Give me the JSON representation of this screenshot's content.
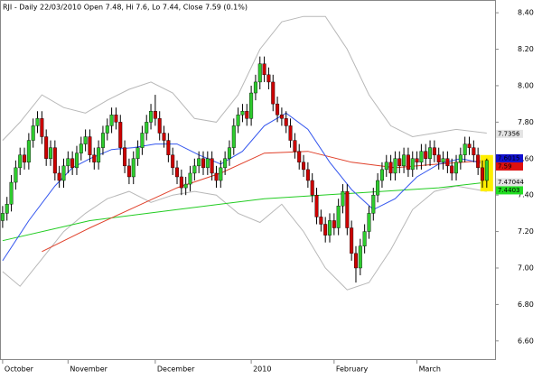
{
  "chart_data": {
    "type": "candlestick",
    "title": "RJI - Daily 22/03/2010 Open 7.48, Hi 7.6, Lo 7.44, Close 7.59 (0.1%)",
    "up_color": "#2ecc2e",
    "down_color": "#cc0000",
    "xlim": [
      -0.6,
      112.9
    ],
    "xticks": [
      {
        "value": 0,
        "label": "October"
      },
      {
        "value": 15,
        "label": "November"
      },
      {
        "value": 35,
        "label": "December"
      },
      {
        "value": 57,
        "label": "2010"
      },
      {
        "value": 76,
        "label": "February"
      },
      {
        "value": 95,
        "label": "March"
      }
    ],
    "ylim": [
      6.5,
      8.47
    ],
    "yticks": [
      {
        "value": 6.6,
        "label": "6.60"
      },
      {
        "value": 6.8,
        "label": "6.80"
      },
      {
        "value": 7.0,
        "label": "7.00"
      },
      {
        "value": 7.2,
        "label": "7.20"
      },
      {
        "value": 7.4,
        "label": "7.40"
      },
      {
        "value": 7.6,
        "label": "7.60"
      },
      {
        "value": 7.8,
        "label": "7.80"
      },
      {
        "value": 8.0,
        "label": "8.00"
      },
      {
        "value": 8.2,
        "label": "8.20"
      },
      {
        "value": 8.4,
        "label": "8.40"
      }
    ],
    "open": [
      7.26,
      7.3,
      7.35,
      7.47,
      7.55,
      7.62,
      7.58,
      7.7,
      7.78,
      7.82,
      7.72,
      7.6,
      7.66,
      7.52,
      7.48,
      7.56,
      7.6,
      7.55,
      7.63,
      7.68,
      7.72,
      7.62,
      7.58,
      7.66,
      7.74,
      7.78,
      7.84,
      7.8,
      7.66,
      7.56,
      7.5,
      7.6,
      7.66,
      7.74,
      7.8,
      7.86,
      7.82,
      7.74,
      7.7,
      7.62,
      7.55,
      7.5,
      7.44,
      7.46,
      7.52,
      7.56,
      7.6,
      7.55,
      7.6,
      7.52,
      7.48,
      7.55,
      7.6,
      7.66,
      7.78,
      7.84,
      7.86,
      7.82,
      7.96,
      8.02,
      8.12,
      8.06,
      8.02,
      7.9,
      7.84,
      7.82,
      7.78,
      7.7,
      7.64,
      7.58,
      7.54,
      7.48,
      7.4,
      7.28,
      7.24,
      7.18,
      7.26,
      7.22,
      7.34,
      7.42,
      7.22,
      7.08,
      7.0,
      7.12,
      7.2,
      7.3,
      7.4,
      7.48,
      7.54,
      7.58,
      7.52,
      7.6,
      7.56,
      7.62,
      7.54,
      7.6,
      7.58,
      7.64,
      7.6,
      7.66,
      7.62,
      7.58,
      7.6,
      7.56,
      7.52,
      7.58,
      7.62,
      7.68,
      7.66,
      7.62,
      7.55,
      7.48
    ],
    "high": [
      7.34,
      7.39,
      7.51,
      7.59,
      7.66,
      7.66,
      7.74,
      7.82,
      7.86,
      7.86,
      7.76,
      7.7,
      7.7,
      7.56,
      7.6,
      7.64,
      7.64,
      7.67,
      7.72,
      7.76,
      7.76,
      7.66,
      7.7,
      7.78,
      7.82,
      7.88,
      7.88,
      7.84,
      7.7,
      7.6,
      7.64,
      7.7,
      7.78,
      7.84,
      7.9,
      7.95,
      7.86,
      7.78,
      7.74,
      7.66,
      7.59,
      7.54,
      7.5,
      7.56,
      7.6,
      7.64,
      7.64,
      7.64,
      7.64,
      7.56,
      7.59,
      7.64,
      7.7,
      7.82,
      7.88,
      7.9,
      7.9,
      8.0,
      8.06,
      8.16,
      8.16,
      8.1,
      8.06,
      7.94,
      7.88,
      7.86,
      7.82,
      7.74,
      7.68,
      7.62,
      7.58,
      7.52,
      7.44,
      7.32,
      7.28,
      7.3,
      7.3,
      7.38,
      7.46,
      7.46,
      7.26,
      7.12,
      7.16,
      7.24,
      7.34,
      7.44,
      7.52,
      7.58,
      7.62,
      7.62,
      7.64,
      7.64,
      7.66,
      7.66,
      7.64,
      7.64,
      7.68,
      7.68,
      7.7,
      7.7,
      7.66,
      7.64,
      7.64,
      7.6,
      7.62,
      7.66,
      7.72,
      7.72,
      7.7,
      7.66,
      7.59,
      7.6
    ],
    "low": [
      7.22,
      7.26,
      7.31,
      7.43,
      7.51,
      7.54,
      7.54,
      7.66,
      7.74,
      7.68,
      7.56,
      7.56,
      7.48,
      7.44,
      7.44,
      7.52,
      7.51,
      7.51,
      7.59,
      7.64,
      7.58,
      7.54,
      7.54,
      7.62,
      7.7,
      7.74,
      7.76,
      7.62,
      7.52,
      7.46,
      7.46,
      7.56,
      7.62,
      7.7,
      7.76,
      7.78,
      7.7,
      7.66,
      7.58,
      7.51,
      7.46,
      7.4,
      7.4,
      7.42,
      7.48,
      7.52,
      7.51,
      7.51,
      7.48,
      7.44,
      7.44,
      7.51,
      7.56,
      7.62,
      7.74,
      7.8,
      7.78,
      7.78,
      7.92,
      7.98,
      8.02,
      7.98,
      7.86,
      7.8,
      7.78,
      7.74,
      7.66,
      7.6,
      7.54,
      7.5,
      7.44,
      7.36,
      7.24,
      7.2,
      7.14,
      7.14,
      7.18,
      7.18,
      7.3,
      7.18,
      7.04,
      6.92,
      6.96,
      7.08,
      7.16,
      7.26,
      7.36,
      7.44,
      7.5,
      7.48,
      7.48,
      7.52,
      7.52,
      7.5,
      7.5,
      7.54,
      7.54,
      7.56,
      7.56,
      7.58,
      7.54,
      7.54,
      7.52,
      7.48,
      7.48,
      7.54,
      7.58,
      7.62,
      7.58,
      7.51,
      7.44,
      7.44
    ],
    "close": [
      7.3,
      7.35,
      7.47,
      7.55,
      7.62,
      7.58,
      7.7,
      7.78,
      7.82,
      7.72,
      7.6,
      7.66,
      7.52,
      7.48,
      7.56,
      7.6,
      7.55,
      7.63,
      7.68,
      7.72,
      7.62,
      7.58,
      7.66,
      7.74,
      7.78,
      7.84,
      7.8,
      7.66,
      7.56,
      7.5,
      7.6,
      7.66,
      7.74,
      7.8,
      7.86,
      7.82,
      7.74,
      7.7,
      7.62,
      7.55,
      7.5,
      7.44,
      7.46,
      7.52,
      7.56,
      7.6,
      7.55,
      7.6,
      7.52,
      7.48,
      7.55,
      7.6,
      7.66,
      7.78,
      7.84,
      7.86,
      7.82,
      7.96,
      8.02,
      8.12,
      8.06,
      8.02,
      7.9,
      7.84,
      7.82,
      7.78,
      7.7,
      7.64,
      7.58,
      7.54,
      7.48,
      7.4,
      7.28,
      7.24,
      7.18,
      7.26,
      7.22,
      7.34,
      7.42,
      7.22,
      7.08,
      7.0,
      7.12,
      7.2,
      7.3,
      7.4,
      7.48,
      7.54,
      7.58,
      7.52,
      7.6,
      7.56,
      7.62,
      7.54,
      7.6,
      7.58,
      7.64,
      7.6,
      7.66,
      7.62,
      7.58,
      7.6,
      7.56,
      7.52,
      7.58,
      7.62,
      7.68,
      7.66,
      7.62,
      7.55,
      7.48,
      7.59
    ],
    "series": [
      {
        "color": "#b8b8b8",
        "x": [
          0,
          4,
          9,
          14,
          19,
          24,
          29,
          34,
          39,
          44,
          49,
          54,
          59,
          64,
          69,
          74,
          79,
          84,
          89,
          94,
          99,
          104,
          111
        ],
        "values": [
          7.7,
          7.8,
          7.95,
          7.88,
          7.85,
          7.92,
          7.98,
          8.02,
          7.96,
          7.82,
          7.8,
          7.95,
          8.2,
          8.35,
          8.38,
          8.38,
          8.2,
          7.95,
          7.78,
          7.72,
          7.74,
          7.76,
          7.74
        ]
      },
      {
        "color": "#b8b8b8",
        "x": [
          0,
          4,
          9,
          14,
          19,
          24,
          29,
          34,
          39,
          44,
          49,
          54,
          59,
          64,
          69,
          74,
          79,
          84,
          89,
          94,
          99,
          104,
          111
        ],
        "values": [
          6.98,
          6.9,
          7.05,
          7.2,
          7.3,
          7.38,
          7.42,
          7.36,
          7.4,
          7.42,
          7.4,
          7.3,
          7.25,
          7.35,
          7.2,
          7.0,
          6.88,
          6.92,
          7.1,
          7.32,
          7.42,
          7.45,
          7.42
        ]
      },
      {
        "color": "#22cc22",
        "x": [
          0,
          20,
          40,
          60,
          80,
          100,
          111
        ],
        "values": [
          7.15,
          7.26,
          7.32,
          7.38,
          7.41,
          7.44,
          7.47
        ]
      },
      {
        "color": "#e0402a",
        "x": [
          9,
          20,
          30,
          40,
          50,
          60,
          70,
          80,
          90,
          100,
          111
        ],
        "values": [
          7.09,
          7.22,
          7.33,
          7.44,
          7.52,
          7.63,
          7.64,
          7.58,
          7.55,
          7.57,
          7.59
        ]
      },
      {
        "color": "#3355ee",
        "x": [
          0,
          6,
          12,
          16,
          20,
          25,
          30,
          35,
          40,
          45,
          50,
          55,
          60,
          65,
          70,
          75,
          80,
          85,
          90,
          95,
          100,
          105,
          111
        ],
        "values": [
          7.04,
          7.26,
          7.45,
          7.55,
          7.6,
          7.65,
          7.66,
          7.68,
          7.68,
          7.62,
          7.57,
          7.64,
          7.78,
          7.85,
          7.76,
          7.58,
          7.43,
          7.32,
          7.38,
          7.5,
          7.57,
          7.6,
          7.57
        ]
      }
    ],
    "price_labels": [
      {
        "value": 7.7356,
        "color": "#e4e4e4"
      },
      {
        "value": 7.6015,
        "color": "#1010d0"
      },
      {
        "value": 7.59,
        "color": "#dd1010"
      },
      {
        "value": 7.47044,
        "color": "#e4e4e4"
      },
      {
        "value": 7.4403,
        "color": "#22dd22"
      }
    ]
  }
}
